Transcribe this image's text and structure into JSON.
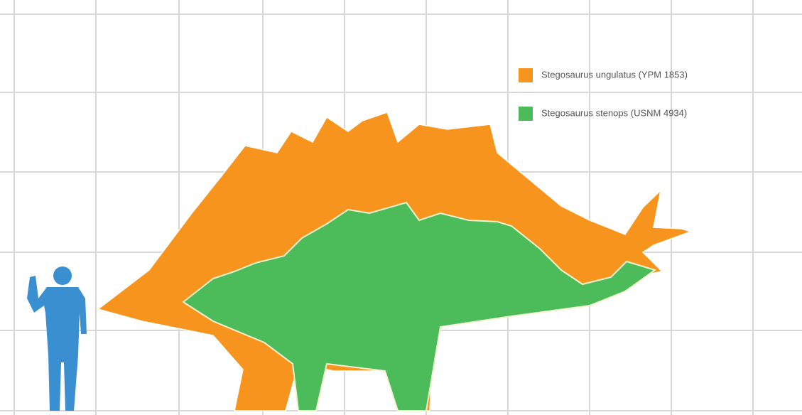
{
  "legend": {
    "items": [
      {
        "label": "Stegosaurus ungulatus (YPM 1853)",
        "color": "#f7941d"
      },
      {
        "label": "Stegosaurus stenops (USNM 4934)",
        "color": "#4cbb5a"
      }
    ]
  }
}
